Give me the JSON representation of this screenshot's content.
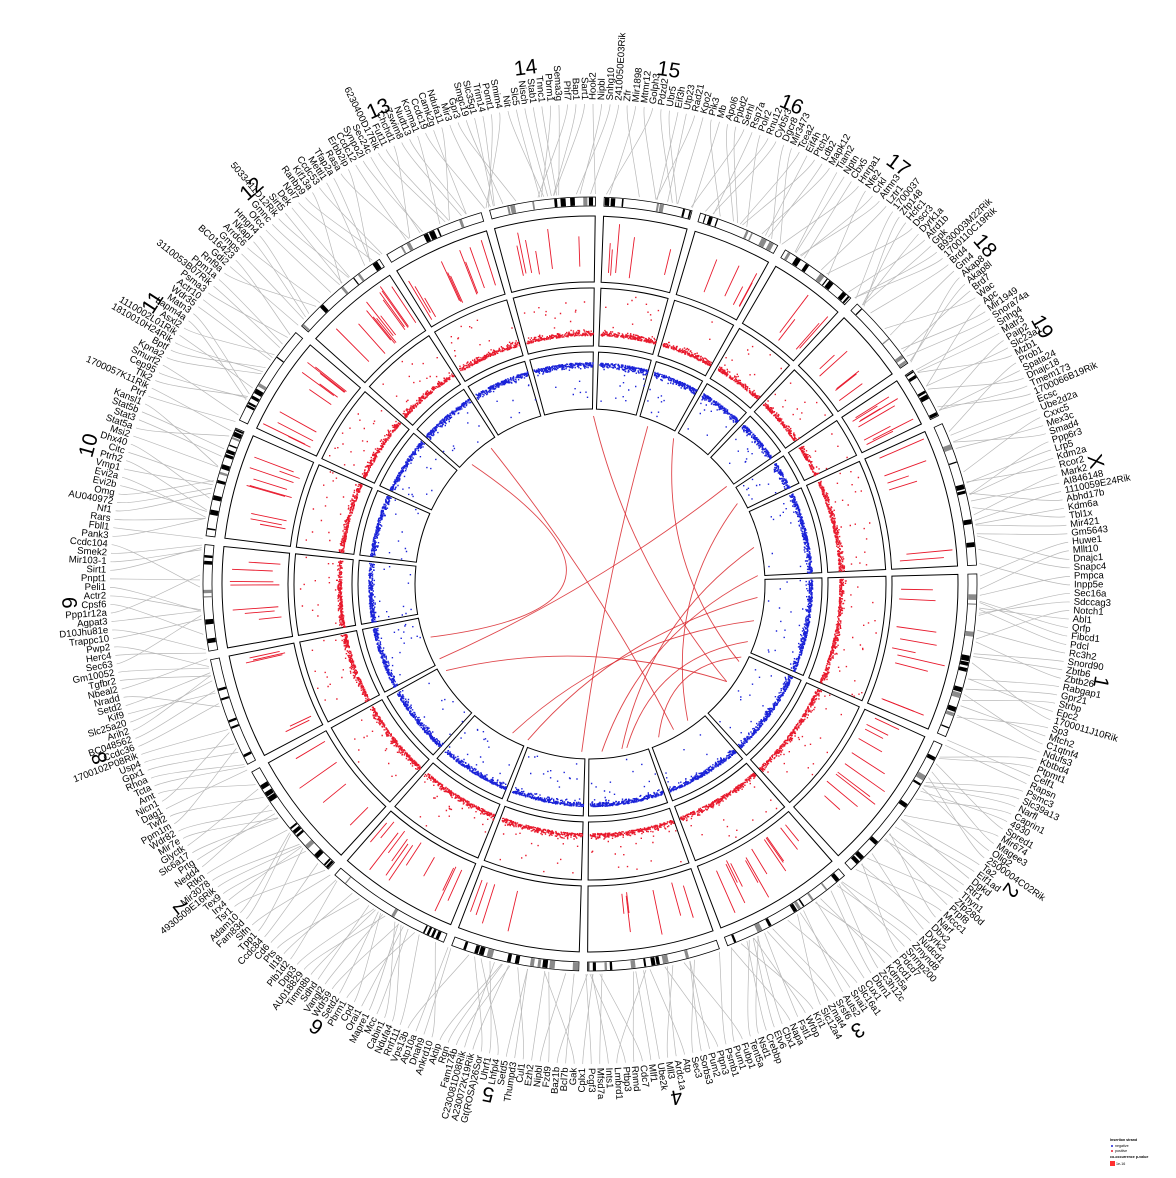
{
  "chromosomes": [
    {
      "label": "1",
      "length": 195
    },
    {
      "label": "2",
      "length": 182
    },
    {
      "label": "3",
      "length": 160
    },
    {
      "label": "4",
      "length": 157
    },
    {
      "label": "5",
      "length": 152
    },
    {
      "label": "6",
      "length": 150
    },
    {
      "label": "7",
      "length": 145
    },
    {
      "label": "8",
      "length": 130
    },
    {
      "label": "9",
      "length": 125
    },
    {
      "label": "10",
      "length": 131
    },
    {
      "label": "11",
      "length": 122
    },
    {
      "label": "12",
      "length": 120
    },
    {
      "label": "13",
      "length": 121
    },
    {
      "label": "14",
      "length": 125
    },
    {
      "label": "15",
      "length": 104
    },
    {
      "label": "16",
      "length": 98
    },
    {
      "label": "17",
      "length": 95
    },
    {
      "label": "18",
      "length": 91
    },
    {
      "label": "19",
      "length": 61
    },
    {
      "label": "X",
      "length": 171
    }
  ],
  "gene_labels": [
    "2410050E03Rik",
    "Zfr",
    "Mir1898",
    "Mtmr12",
    "Golph3",
    "Pdzd2",
    "Ubr5",
    "Eif3h",
    "Utp23",
    "Rad21",
    "Kpo2",
    "Pik3",
    "Mb",
    "Apol6",
    "Ppbd2",
    "Serhl",
    "Rsp7a",
    "Polr2",
    "Rnu12",
    "Cyb5r3",
    "Dgcr8",
    "Mir3473",
    "Tcea2",
    "Eif4h",
    "Ptch2",
    "Ldb2",
    "Mapk12",
    "Tiam2",
    "Nptn",
    "Cbx5",
    "Hnrpa1",
    "Nfe2",
    "Crkl",
    "Atmn3",
    "Lztr1",
    "1700037",
    "Zfp148",
    "Hcfc1",
    "Dscr3",
    "Dyrk1a",
    "Atrd1b",
    "Gpk",
    "B930003M22Rik",
    "1700110C19Rik",
    "Brd4",
    "Gm4",
    "Akap8",
    "Akap8l",
    "Brd7",
    "Wac",
    "Apc",
    "Mir1949",
    "Snora74a",
    "Snhg4",
    "Matr3",
    "Paip2",
    "Slc23a1",
    "Mzb1",
    "Prob1",
    "Spata24",
    "Dnajc18",
    "Tmem173",
    "1700066B19Rik",
    "Ecsc",
    "Ube2d2a",
    "Cxxc5",
    "Mex3c",
    "Smad4",
    "Ppp6r3",
    "Lrp5",
    "Kdm2a",
    "Rcor2",
    "Mark2",
    "AI846148",
    "1110059E24Rik",
    "Abhd17b",
    "Kdm6a",
    "Tbl1x",
    "Mir421",
    "Gm5643",
    "Huwe1",
    "Mllt10",
    "Dnajc1",
    "Snapc4",
    "Pmpca",
    "Inpp5e",
    "Sec16a",
    "Sdccag3",
    "Notch1",
    "Abl1",
    "Qrfp",
    "Fibcd1",
    "Pdcl",
    "Rc3h2",
    "Snord90",
    "Zbtb6",
    "Zbtb26",
    "Rabgap1",
    "Gpr21",
    "Strbp",
    "Epc2",
    "1700011J10Rik",
    "Sp3",
    "Mtch2",
    "C1qtnf4",
    "Ndufs3",
    "Kbtbd4",
    "Ptpmt1",
    "Celf1",
    "Rapsn",
    "Psmc3",
    "Slc39a13",
    "Narfl",
    "Caprin1",
    "4930",
    "Spred1",
    "Mir674",
    "Magee3",
    "Olig2",
    "2500004C02Rik",
    "Ta2",
    "Eif1ad",
    "Dgkd",
    "Rtr1",
    "Thyn1",
    "Zfp280d",
    "Prpf8",
    "Mccc1",
    "Narf",
    "Dbx2",
    "Dyrk2",
    "Nudcd1",
    "Zmynd8",
    "Snrnp200",
    "Pdcd7",
    "Ptcd1",
    "Kdm5a",
    "Zc3h12c",
    "Dbrn1",
    "Cux1",
    "Slc16a1",
    "Snai1",
    "Auts2",
    "Srsf6",
    "Zmat4",
    "Slc12a4",
    "Kri1",
    "Wrbp",
    "Fstl1",
    "Napa",
    "Cbx1",
    "Etv6",
    "Crebbp",
    "Nsd1",
    "Tent5a",
    "Fubp1",
    "Pum1",
    "Psmb1",
    "Ptpn3",
    "Pum2",
    "Sorbs3",
    "Sec3",
    "Atp",
    "Ardc1a",
    "Mll3",
    "Ube2k",
    "Mlf1",
    "Cdc7",
    "Rnmd",
    "Ptbp3",
    "Lmbrd1",
    "Ints1",
    "Mfsd7a",
    "Pcgf3",
    "Cplx1",
    "Gak",
    "Bcl7b",
    "Baz1b",
    "Fzd9",
    "Nipbl",
    "Ezh2",
    "Cul1",
    "Thumpd3",
    "Setd5",
    "Lhfpl4",
    "Uhrf1",
    "Gt(ROSA)26Sor",
    "A230072K19Rik",
    "C230081D08Rik",
    "Fam174b",
    "Rgn",
    "Aktip",
    "Ankrd10",
    "Dnah9",
    "Atp10a",
    "Vps13b",
    "Rnf111",
    "Ndufa4",
    "Cabin1",
    "Mcc",
    "Mapre1",
    "Orai1",
    "Cpd",
    "Pbrm1",
    "Setd2",
    "Wdr59",
    "Vangl2",
    "Sdhd",
    "Timm8b",
    "AU018829",
    "Dpp3",
    "Plb1d2",
    "Il18",
    "Pts",
    "Cd6",
    "Ccdc84",
    "Tpp1",
    "Slfn",
    "Fam83d",
    "Adam10",
    "Tsr1",
    "Irx4",
    "Tex9",
    "4930509E16Rik",
    "Mir3078",
    "Rtkn",
    "Nedd4",
    "Prtg",
    "Slc6a17",
    "Glyctk",
    "Mir7e",
    "Wdr82",
    "Ppm1m",
    "Twf2",
    "Dag1",
    "Nicn1",
    "Amt",
    "Tcta",
    "Rhoa",
    "Gpx1",
    "Usp4",
    "1700102P08Rik",
    "Ccdc36",
    "BC048562",
    "Arih2",
    "Slc25a20",
    "Kif9",
    "Setd2",
    "Nradd",
    "Nbeal2",
    "Tgfbr2",
    "Gm10052",
    "Sec63",
    "Herc4",
    "Pwp2",
    "Trappc10",
    "D10Jhu81e",
    "Agpat3",
    "Ppp1r12a",
    "Cpsf6",
    "Actr2",
    "Peli1",
    "Pnpt1",
    "Sirt1",
    "Mir103-1",
    "Smek2",
    "Ccdc104",
    "Pank3",
    "Fbll1",
    "Rars",
    "Nf1",
    "AU040972",
    "Omg",
    "Evi2b",
    "Evi2a",
    "Vmp1",
    "Ptrh2",
    "Citc",
    "Dhx40",
    "Msi2",
    "Stat5a",
    "Stat3",
    "Stat5b",
    "Kansl1",
    "Ptrf",
    "1700057K11Rik",
    "Tlk2",
    "Cep95",
    "Smurf2",
    "Kpna2",
    "Bptf",
    "1810010H24Rik",
    "1110002L01Rik",
    "Asxl2",
    "Lapm4a",
    "Matn3",
    "Wdr35",
    "Actr10",
    "Psma3",
    "3110053B07Rik",
    "Ppm1a",
    "Rnf9a",
    "Gdi2",
    "BC016423",
    "Gmps",
    "Arrdc6",
    "Nkapl",
    "Hmgn4",
    "Ofcc",
    "Gmnc",
    "5033411D12Rik",
    "Sirt5",
    "Dek",
    "Nol7",
    "Ranbp9",
    "Kif13a",
    "Ccdc53",
    "Mettl1",
    "Tfap2a",
    "Rasa",
    "Erbb2ip",
    "Ccdc12",
    "Synpo2l",
    "Sec24c",
    "6230400D17Rik",
    "Fut11",
    "Chchd1",
    "Zswim8",
    "Nudt13",
    "Kcnma1",
    "Ccdc19",
    "Camk2g",
    "Ndufa11",
    "Mir3",
    "Gpr3",
    "Smgc19",
    "Slc35g1",
    "Trim14",
    "Pomt1",
    "Smim4",
    "Nit",
    "Slc5",
    "Nisch",
    "Stab1",
    "Tnnc1",
    "Pbrm1",
    "Sema3g",
    "Phf7",
    "Bap1",
    "Sart1",
    "Hook2",
    "Nipbl",
    "Snhg10"
  ],
  "legend": {
    "title": "Insertion strand",
    "items": [
      "negative",
      "positive"
    ],
    "pvalue_title": "co-occurrence p-value",
    "pvalue_range": "1e-16"
  },
  "colors": {
    "track_red": "#e8192c",
    "track_blue": "#1a22d8",
    "link_red": "#d9262b",
    "label_line": "#b8b8b8",
    "ideogram_dark": "#000000",
    "ideogram_gray": "#8a8a8a",
    "ring_line": "#000000"
  }
}
